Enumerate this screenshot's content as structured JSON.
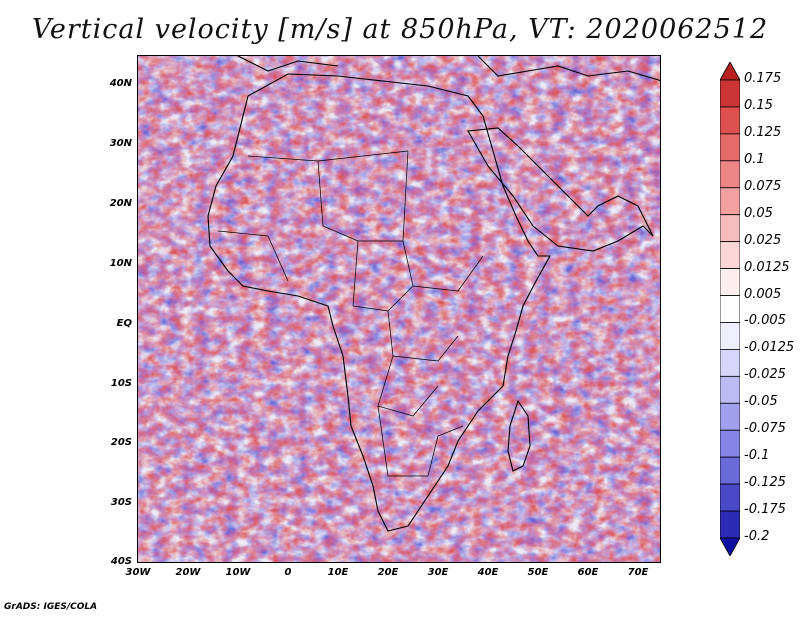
{
  "title": "Vertical velocity [m/s] at 850hPa, VT: 2020062512",
  "credit": "GrADS: IGES/COLA",
  "lat_ticks": [
    "40N",
    "30N",
    "20N",
    "10N",
    "EQ",
    "10S",
    "20S",
    "30S",
    "40S"
  ],
  "lon_ticks": [
    "30W",
    "20W",
    "10W",
    "0",
    "10E",
    "20E",
    "30E",
    "40E",
    "50E",
    "60E",
    "70E"
  ],
  "colorbar": {
    "labels": [
      "0.175",
      "0.15",
      "0.125",
      "0.1",
      "0.075",
      "0.05",
      "0.025",
      "0.0125",
      "0.005",
      "-0.005",
      "-0.0125",
      "-0.025",
      "-0.05",
      "-0.075",
      "-0.1",
      "-0.125",
      "-0.175",
      "-0.2"
    ],
    "colors": [
      "#b82020",
      "#cc3535",
      "#dd5050",
      "#e56a6a",
      "#ec8585",
      "#f2a0a0",
      "#f6bcbc",
      "#fad6d6",
      "#fdeeee",
      "#ffffff",
      "#eeeefd",
      "#d6d6f8",
      "#bcbcf3",
      "#a0a0ec",
      "#8585e5",
      "#6a6ad8",
      "#4a4ac8",
      "#2a2ab5",
      "#1010a0"
    ]
  },
  "colors": {
    "positive": "#d94040",
    "negative": "#5050d0",
    "coast": "#000000"
  }
}
